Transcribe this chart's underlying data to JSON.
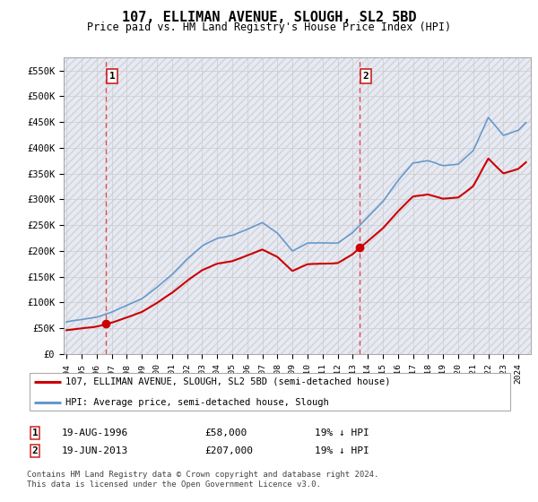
{
  "title": "107, ELLIMAN AVENUE, SLOUGH, SL2 5BD",
  "subtitle": "Price paid vs. HM Land Registry's House Price Index (HPI)",
  "ylabel_ticks": [
    "£0",
    "£50K",
    "£100K",
    "£150K",
    "£200K",
    "£250K",
    "£300K",
    "£350K",
    "£400K",
    "£450K",
    "£500K",
    "£550K"
  ],
  "ytick_values": [
    0,
    50000,
    100000,
    150000,
    200000,
    250000,
    300000,
    350000,
    400000,
    450000,
    500000,
    550000
  ],
  "ylim": [
    0,
    575000
  ],
  "xlim_start": 1993.8,
  "xlim_end": 2024.8,
  "transaction1_price": 58000,
  "transaction1_year": 1996.63,
  "transaction1_label": "1",
  "transaction2_price": 207000,
  "transaction2_year": 2013.46,
  "transaction2_label": "2",
  "legend_line1": "107, ELLIMAN AVENUE, SLOUGH, SL2 5BD (semi-detached house)",
  "legend_line2": "HPI: Average price, semi-detached house, Slough",
  "footer": "Contains HM Land Registry data © Crown copyright and database right 2024.\nThis data is licensed under the Open Government Licence v3.0.",
  "table_row1": [
    "1",
    "19-AUG-1996",
    "£58,000",
    "19% ↓ HPI"
  ],
  "table_row2": [
    "2",
    "19-JUN-2013",
    "£207,000",
    "19% ↓ HPI"
  ],
  "red_color": "#cc0000",
  "blue_color": "#6699cc",
  "bg_color": "#e8eaf2",
  "grid_color": "#cccccc",
  "hpi_points_x": [
    1994.0,
    1995.0,
    1996.0,
    1997.0,
    1998.0,
    1999.0,
    2000.0,
    2001.0,
    2002.0,
    2003.0,
    2004.0,
    2005.0,
    2006.0,
    2007.0,
    2008.0,
    2009.0,
    2010.0,
    2011.0,
    2012.0,
    2013.0,
    2014.0,
    2015.0,
    2016.0,
    2017.0,
    2018.0,
    2019.0,
    2020.0,
    2021.0,
    2022.0,
    2023.0,
    2024.0,
    2024.5
  ],
  "hpi_points_y": [
    62000,
    67000,
    72000,
    82000,
    95000,
    108000,
    130000,
    155000,
    185000,
    210000,
    225000,
    230000,
    242000,
    255000,
    235000,
    200000,
    215000,
    215000,
    215000,
    235000,
    265000,
    295000,
    335000,
    370000,
    375000,
    365000,
    368000,
    395000,
    460000,
    425000,
    435000,
    450000
  ]
}
